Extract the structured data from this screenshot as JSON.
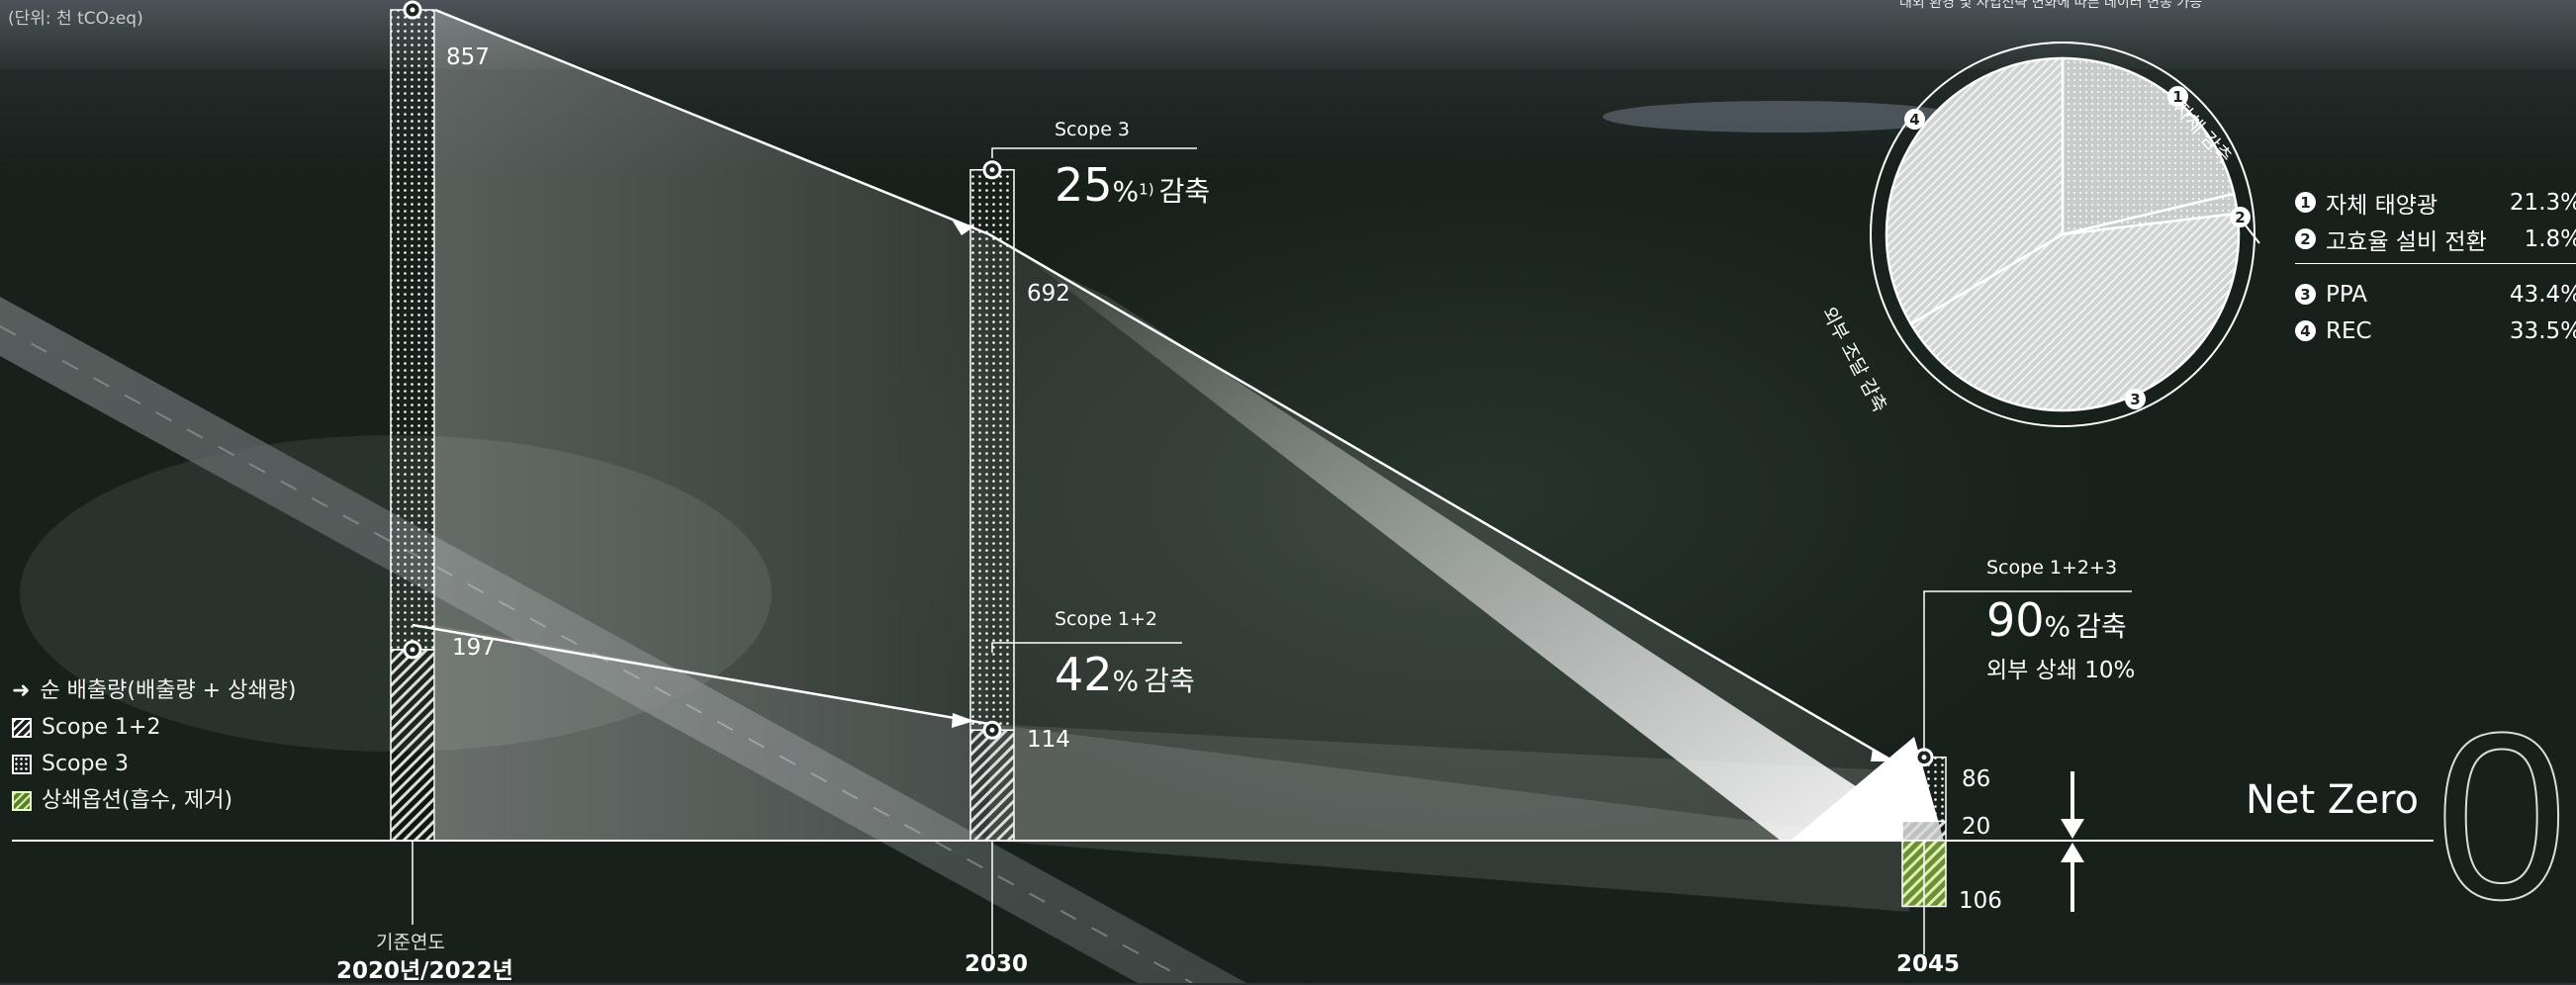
{
  "unit_note": "(단위: 천 tCO₂eq)",
  "pie_note": "대외 환경 및 사업전략 변화에 따른 데이터 변동 가능",
  "legend": [
    {
      "symbol": "arrow",
      "label": "순 배출량(배출량 + 상쇄량)"
    },
    {
      "symbol": "hatch",
      "label": "Scope 1+2"
    },
    {
      "symbol": "dots",
      "label": "Scope 3"
    },
    {
      "symbol": "offset",
      "label": "상쇄옵션(흡수, 제거)"
    }
  ],
  "callouts": {
    "scope3_2030": {
      "title": "Scope 3",
      "value": "25",
      "unit": "%",
      "sup": "1)",
      "suffix": "감축"
    },
    "scope12_2030": {
      "title": "Scope 1+2",
      "value": "42",
      "unit": "%",
      "suffix": "감축"
    },
    "scope123_2045": {
      "title": "Scope 1+2+3",
      "value": "90",
      "unit": "%",
      "suffix": "감축",
      "sub": "외부 상쇄 10%"
    }
  },
  "net_zero": {
    "label": "Net Zero",
    "big": "0"
  },
  "year_labels": {
    "base_sub": "기준연도",
    "base": "2020년/2022년",
    "y2030": "2030",
    "y2045": "2045"
  },
  "pie": {
    "arc_labels": {
      "self": "자체 감축",
      "external": "외부 조달 감축"
    },
    "items": [
      {
        "n": "1",
        "label": "자체 태양광",
        "value": "21.3%"
      },
      {
        "n": "2",
        "label": "고효율 설비 전환",
        "value": "1.8%"
      },
      {
        "n": "3",
        "label": "PPA",
        "value": "43.4%"
      },
      {
        "n": "4",
        "label": "REC",
        "value": "33.5%"
      }
    ]
  },
  "chart_data": [
    {
      "type": "bar",
      "categories": [
        "2020년/2022년",
        "2030",
        "2045"
      ],
      "series": [
        {
          "name": "Scope 1+2",
          "values": [
            197,
            114,
            20
          ]
        },
        {
          "name": "Scope 3",
          "values": [
            660,
            578,
            66
          ]
        },
        {
          "name": "상쇄옵션(흡수, 제거)",
          "values": [
            0,
            0,
            -106
          ]
        }
      ],
      "totals": [
        857,
        692,
        86
      ],
      "labels": {
        "base_total": "857",
        "base_s12": "197",
        "y2030_total": "692",
        "y2030_s12": "114",
        "y2045_total": "86",
        "y2045_s12": "20",
        "y2045_offset": "106"
      },
      "ylim": [
        -110,
        860
      ]
    },
    {
      "type": "pie",
      "labels": [
        "자체 태양광",
        "고효율 설비 전환",
        "PPA",
        "REC"
      ],
      "values": [
        21.3,
        1.8,
        43.4,
        33.5
      ]
    }
  ]
}
